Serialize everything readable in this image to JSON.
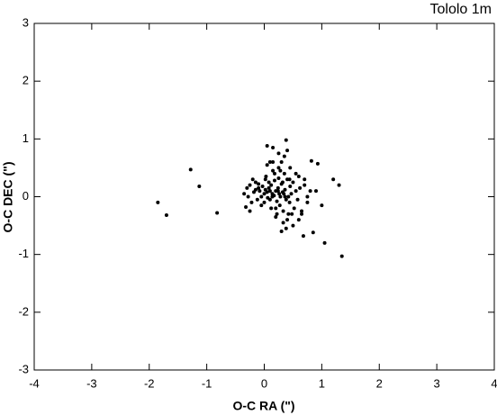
{
  "chart_data": {
    "type": "scatter",
    "title": "Tololo 1m",
    "x_label": "O-C RA (\")",
    "y_label": "O-C DEC (\")",
    "xlim": [
      -4,
      4
    ],
    "ylim": [
      -3,
      3
    ],
    "xticks": [
      -4,
      -3,
      -2,
      -1,
      0,
      1,
      2,
      3,
      4
    ],
    "yticks": [
      -3,
      -2,
      -1,
      0,
      1,
      2,
      3
    ],
    "color": "#000000",
    "x": [
      -1.28,
      -1.13,
      -1.85,
      -1.7,
      -0.82,
      1.35,
      1.05,
      0.85,
      0.68,
      1.3,
      1.2,
      0.93,
      0.82,
      0.38,
      0.05,
      0.15,
      0.4,
      0.25,
      -0.35,
      -0.32,
      -0.3,
      -0.28,
      -0.25,
      -0.22,
      -0.2,
      -0.18,
      -0.15,
      -0.12,
      -0.1,
      -0.08,
      -0.05,
      -0.03,
      0.0,
      0.02,
      0.03,
      0.05,
      0.06,
      0.08,
      0.1,
      0.12,
      0.14,
      0.15,
      0.17,
      0.18,
      0.2,
      0.22,
      0.24,
      0.25,
      0.27,
      0.28,
      0.3,
      0.32,
      0.33,
      0.35,
      0.36,
      0.38,
      0.4,
      0.42,
      0.44,
      0.45,
      0.47,
      0.5,
      0.52,
      0.55,
      0.58,
      0.6,
      0.62,
      0.65,
      0.7,
      0.75,
      0.8,
      -0.25,
      -0.15,
      -0.05,
      0.05,
      0.1,
      0.15,
      0.2,
      0.25,
      0.3,
      0.35,
      0.4,
      0.45,
      0.5,
      0.55,
      0.6,
      0.7,
      0.9,
      1.0,
      0.12,
      0.22,
      0.28,
      0.33,
      0.38,
      0.42,
      0.18,
      0.08,
      0.0,
      -0.1,
      0.3,
      0.36,
      0.48,
      0.26,
      0.14,
      0.02,
      0.65,
      0.75,
      0.2,
      0.32,
      0.44,
      0.1,
      0.24,
      0.34
    ],
    "values": [
      0.47,
      0.18,
      -0.1,
      -0.32,
      -0.28,
      -1.03,
      -0.8,
      -0.62,
      -0.68,
      0.2,
      0.3,
      0.57,
      0.62,
      0.98,
      0.88,
      0.85,
      0.8,
      0.75,
      0.05,
      -0.18,
      0.15,
      0.0,
      0.2,
      -0.1,
      0.3,
      0.08,
      0.12,
      -0.05,
      0.22,
      0.1,
      0.0,
      0.18,
      0.05,
      0.12,
      0.35,
      0.08,
      -0.02,
      0.15,
      0.1,
      0.2,
      0.05,
      0.45,
      0.02,
      0.28,
      0.1,
      -0.08,
      0.15,
      0.32,
      -0.15,
      0.0,
      0.22,
      0.08,
      -0.25,
      0.4,
      0.12,
      -0.05,
      0.3,
      0.0,
      -0.1,
      0.18,
      0.05,
      0.25,
      -0.2,
      0.1,
      -0.05,
      0.35,
      0.15,
      -0.3,
      0.2,
      0.0,
      0.1,
      -0.25,
      0.25,
      -0.15,
      0.55,
      0.6,
      0.6,
      -0.35,
      0.5,
      0.6,
      0.7,
      -0.4,
      0.5,
      -0.5,
      0.4,
      -0.4,
      0.3,
      0.1,
      -0.15,
      -0.2,
      -0.3,
      0.45,
      -0.45,
      -0.55,
      -0.3,
      0.4,
      0.25,
      -0.1,
      0.15,
      -0.6,
      0.0,
      -0.3,
      0.05,
      0.0,
      0.3,
      -0.25,
      -0.1,
      -0.2,
      0.25,
      0.3,
      -0.05,
      0.1,
      0.05
    ]
  }
}
